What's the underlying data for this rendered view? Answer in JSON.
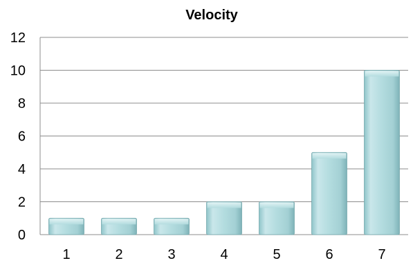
{
  "chart_data": {
    "type": "bar",
    "title": "Velocity",
    "xlabel": "",
    "ylabel": "",
    "categories": [
      "1",
      "2",
      "3",
      "4",
      "5",
      "6",
      "7"
    ],
    "values": [
      1,
      1,
      1,
      2,
      2,
      5,
      10
    ],
    "ylim": [
      0,
      12
    ],
    "yticks": [
      "0",
      "2",
      "4",
      "6",
      "8",
      "10",
      "12"
    ],
    "grid": true,
    "legend": "none",
    "bar_color": "#a9d4d8",
    "bar_edge_color": "#6fa5aa",
    "grid_color": "#8c8c8c"
  }
}
